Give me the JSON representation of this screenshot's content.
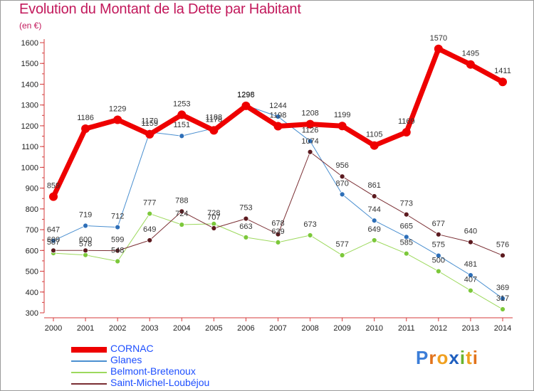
{
  "header": {
    "title": "Evolution du Montant de la Dette par Habitant",
    "unit": "(en €)"
  },
  "logo": {
    "text": "Proxiti",
    "letters": [
      {
        "ch": "P",
        "color": "#3b7dd8"
      },
      {
        "ch": "r",
        "color": "#e2731c"
      },
      {
        "ch": "o",
        "color": "#f0a020"
      },
      {
        "ch": "x",
        "color": "#1f5fbf"
      },
      {
        "ch": "i",
        "color": "#6ab42d"
      },
      {
        "ch": "t",
        "color": "#f0a020"
      },
      {
        "ch": "i",
        "color": "#e2731c"
      }
    ]
  },
  "chart_data": {
    "type": "line",
    "title": "Evolution du Montant de la Dette par Habitant",
    "ylabel": "(en €)",
    "xlabel": "",
    "ylim": [
      300,
      1600
    ],
    "yticks": [
      300,
      400,
      500,
      600,
      700,
      800,
      900,
      1000,
      1100,
      1200,
      1300,
      1400,
      1500,
      1600
    ],
    "grid": false,
    "legend_position": "bottom-left",
    "x": [
      "2000",
      "2001",
      "2002",
      "2003",
      "2004",
      "2005",
      "2006",
      "2007",
      "2008",
      "2009",
      "2010",
      "2011",
      "2012",
      "2013",
      "2014"
    ],
    "series": [
      {
        "name": "Glanes",
        "color": "#4a8fd0",
        "marker": "#2e6fb8",
        "width": 1,
        "values": [
          647,
          719,
          712,
          1170,
          1151,
          1188,
          1298,
          1244,
          1126,
          870,
          744,
          665,
          575,
          481,
          369
        ],
        "labels": [
          "647",
          "719",
          "712",
          "1170",
          "1151",
          "1188",
          "1298",
          "1244",
          "1126",
          "870",
          "744",
          "665",
          "575",
          "481",
          "369"
        ]
      },
      {
        "name": "Belmont-Bretenoux",
        "color": "#9dd95d",
        "marker": "#7cc83a",
        "width": 1,
        "values": [
          587,
          578,
          548,
          777,
          724,
          728,
          663,
          639,
          673,
          577,
          649,
          585,
          500,
          407,
          317
        ],
        "labels": [
          "587",
          "578",
          "548",
          "777",
          "724",
          "728",
          "663",
          "639",
          "673",
          "577",
          "649",
          "585",
          "500",
          "407",
          "317"
        ]
      },
      {
        "name": "Saint-Michel-Loubéjou",
        "color": "#7a2e33",
        "marker": "#5c1a1f",
        "width": 1,
        "values": [
          600,
          600,
          599,
          649,
          788,
          707,
          753,
          678,
          1074,
          956,
          861,
          773,
          677,
          640,
          576
        ],
        "labels": [
          "600",
          "600",
          "599",
          "649",
          "788",
          "707",
          "753",
          "678",
          "1074",
          "956",
          "861",
          "773",
          "677",
          "640",
          "576"
        ]
      },
      {
        "name": "CORNAC",
        "color": "#ee0000",
        "marker": "#ee0000",
        "width": 7,
        "values": [
          859,
          1186,
          1229,
          1159,
          1253,
          1178,
          1296,
          1198,
          1208,
          1199,
          1105,
          1169,
          1570,
          1495,
          1411
        ],
        "labels": [
          "859",
          "1186",
          "1229",
          "1159",
          "1253",
          "1178",
          "1296",
          "1198",
          "1208",
          "1199",
          "1105",
          "1169",
          "1570",
          "1495",
          "1411"
        ]
      }
    ],
    "legend_order": [
      "CORNAC",
      "Glanes",
      "Belmont-Bretenoux",
      "Saint-Michel-Loubéjou"
    ]
  }
}
